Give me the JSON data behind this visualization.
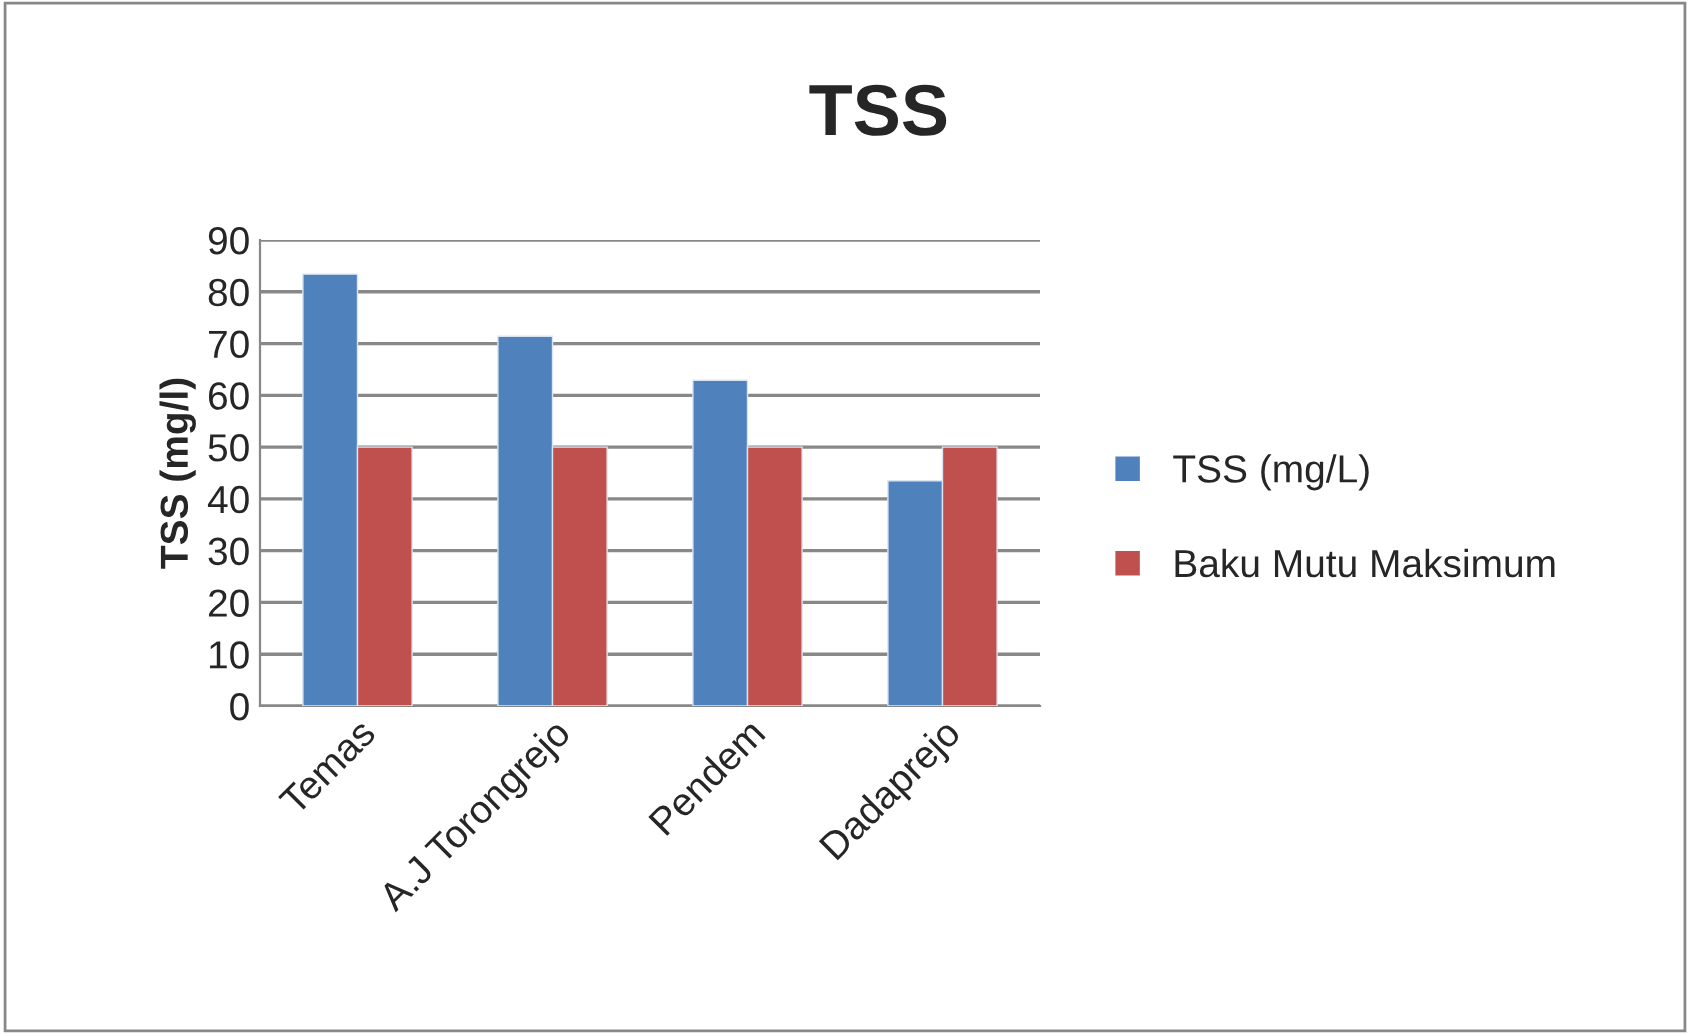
{
  "chart_data": {
    "type": "bar",
    "title": "TSS",
    "ylabel": "TSS (mg/l)",
    "categories": [
      "Temas",
      "A.J Torongrejo",
      "Pendem",
      "Dadaprejo"
    ],
    "series": [
      {
        "name": "TSS (mg/L)",
        "color": "#4f81bd",
        "values": [
          83.4,
          71.4,
          62.9,
          43.5
        ]
      },
      {
        "name": "Baku Mutu Maksimum",
        "color": "#c0504d",
        "values": [
          50,
          50,
          50,
          50
        ]
      }
    ],
    "ylim": [
      0,
      90
    ],
    "yticks": [
      0,
      10,
      20,
      30,
      40,
      50,
      60,
      70,
      80,
      90
    ],
    "grid": "y",
    "legend": "right"
  }
}
